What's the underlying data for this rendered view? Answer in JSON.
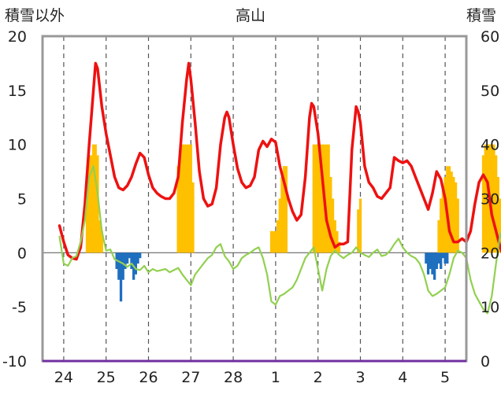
{
  "chart_data": {
    "type": "line",
    "title": "高山",
    "left_axis_label": "積雪以外",
    "right_axis_label": "積雪",
    "y_left": {
      "min": -10,
      "max": 20,
      "ticks": [
        20,
        15,
        10,
        5,
        0,
        -5,
        -10
      ]
    },
    "y_right": {
      "min": 0,
      "max": 60,
      "ticks": [
        60,
        50,
        40,
        30,
        20,
        10,
        0
      ]
    },
    "x_ticks": [
      "24",
      "25",
      "26",
      "27",
      "28",
      "1",
      "2",
      "3",
      "4",
      "5"
    ],
    "colors": {
      "red": "#ee1111",
      "green": "#92d050",
      "orange": "#ffc000",
      "blue": "#1f6fbf",
      "purple": "#7030a0",
      "grid": "#555555",
      "frame": "#999999"
    },
    "series": [
      {
        "color": "red",
        "axis": "left",
        "kind": "line",
        "points": [
          [
            -0.1,
            2.5
          ],
          [
            0.0,
            1.0
          ],
          [
            0.1,
            -0.2
          ],
          [
            0.2,
            -0.5
          ],
          [
            0.3,
            -0.6
          ],
          [
            0.4,
            0.5
          ],
          [
            0.5,
            4.5
          ],
          [
            0.6,
            10.0
          ],
          [
            0.7,
            15.0
          ],
          [
            0.75,
            17.5
          ],
          [
            0.8,
            17.0
          ],
          [
            0.9,
            13.5
          ],
          [
            1.0,
            11.0
          ],
          [
            1.1,
            9.0
          ],
          [
            1.2,
            7.0
          ],
          [
            1.3,
            6.0
          ],
          [
            1.4,
            5.8
          ],
          [
            1.5,
            6.2
          ],
          [
            1.6,
            7.0
          ],
          [
            1.7,
            8.2
          ],
          [
            1.8,
            9.2
          ],
          [
            1.9,
            8.8
          ],
          [
            2.0,
            7.2
          ],
          [
            2.1,
            6.0
          ],
          [
            2.2,
            5.5
          ],
          [
            2.3,
            5.2
          ],
          [
            2.4,
            5.0
          ],
          [
            2.5,
            5.0
          ],
          [
            2.6,
            5.5
          ],
          [
            2.7,
            7.0
          ],
          [
            2.8,
            12.0
          ],
          [
            2.9,
            16.0
          ],
          [
            2.95,
            17.5
          ],
          [
            3.0,
            16.0
          ],
          [
            3.1,
            12.0
          ],
          [
            3.2,
            7.5
          ],
          [
            3.3,
            5.0
          ],
          [
            3.4,
            4.3
          ],
          [
            3.5,
            4.5
          ],
          [
            3.6,
            6.0
          ],
          [
            3.7,
            10.0
          ],
          [
            3.8,
            12.5
          ],
          [
            3.85,
            13.0
          ],
          [
            3.9,
            12.5
          ],
          [
            4.0,
            10.0
          ],
          [
            4.1,
            7.8
          ],
          [
            4.2,
            6.5
          ],
          [
            4.3,
            6.0
          ],
          [
            4.4,
            6.2
          ],
          [
            4.5,
            7.0
          ],
          [
            4.6,
            9.5
          ],
          [
            4.7,
            10.3
          ],
          [
            4.8,
            9.8
          ],
          [
            4.9,
            10.5
          ],
          [
            5.0,
            10.2
          ],
          [
            5.1,
            8.0
          ],
          [
            5.2,
            6.5
          ],
          [
            5.3,
            5.0
          ],
          [
            5.4,
            3.8
          ],
          [
            5.5,
            3.0
          ],
          [
            5.6,
            3.5
          ],
          [
            5.7,
            7.0
          ],
          [
            5.8,
            12.5
          ],
          [
            5.85,
            13.8
          ],
          [
            5.9,
            13.5
          ],
          [
            6.0,
            11.0
          ],
          [
            6.1,
            7.0
          ],
          [
            6.2,
            3.0
          ],
          [
            6.3,
            1.5
          ],
          [
            6.4,
            0.5
          ],
          [
            6.5,
            0.8
          ],
          [
            6.6,
            0.8
          ],
          [
            6.7,
            1.0
          ],
          [
            6.8,
            9.5
          ],
          [
            6.9,
            13.5
          ],
          [
            6.95,
            13.0
          ],
          [
            7.0,
            12.0
          ],
          [
            7.1,
            8.0
          ],
          [
            7.2,
            6.5
          ],
          [
            7.3,
            6.0
          ],
          [
            7.4,
            5.2
          ],
          [
            7.5,
            5.0
          ],
          [
            7.6,
            5.5
          ],
          [
            7.7,
            6.0
          ],
          [
            7.8,
            8.8
          ],
          [
            7.9,
            8.5
          ],
          [
            8.0,
            8.3
          ],
          [
            8.1,
            8.5
          ],
          [
            8.2,
            8.0
          ],
          [
            8.3,
            7.0
          ],
          [
            8.4,
            6.0
          ],
          [
            8.5,
            5.0
          ],
          [
            8.6,
            4.0
          ],
          [
            8.7,
            5.5
          ],
          [
            8.8,
            7.5
          ],
          [
            8.9,
            6.8
          ],
          [
            9.0,
            5.0
          ],
          [
            9.1,
            2.0
          ],
          [
            9.2,
            1.0
          ],
          [
            9.3,
            1.0
          ],
          [
            9.4,
            1.3
          ],
          [
            9.5,
            1.0
          ],
          [
            9.6,
            2.0
          ],
          [
            9.7,
            4.5
          ],
          [
            9.8,
            6.5
          ],
          [
            9.9,
            7.2
          ],
          [
            10.0,
            6.5
          ],
          [
            10.1,
            3.5
          ],
          [
            10.2,
            2.0
          ],
          [
            10.3,
            0.5
          ],
          [
            10.4,
            -0.6
          ]
        ]
      },
      {
        "color": "green",
        "axis": "left",
        "kind": "line",
        "points": [
          [
            -0.1,
            1.5
          ],
          [
            0.0,
            -1.0
          ],
          [
            0.1,
            -1.2
          ],
          [
            0.2,
            -0.5
          ],
          [
            0.3,
            -0.3
          ],
          [
            0.4,
            1.0
          ],
          [
            0.5,
            3.0
          ],
          [
            0.6,
            7.0
          ],
          [
            0.7,
            8.0
          ],
          [
            0.8,
            5.5
          ],
          [
            0.9,
            2.0
          ],
          [
            1.0,
            0.2
          ],
          [
            1.1,
            0.3
          ],
          [
            1.2,
            -0.6
          ],
          [
            1.3,
            -0.8
          ],
          [
            1.4,
            -1.0
          ],
          [
            1.5,
            -1.3
          ],
          [
            1.6,
            -1.0
          ],
          [
            1.7,
            -1.5
          ],
          [
            1.8,
            -1.6
          ],
          [
            1.9,
            -1.2
          ],
          [
            2.0,
            -1.8
          ],
          [
            2.1,
            -1.5
          ],
          [
            2.2,
            -1.7
          ],
          [
            2.3,
            -1.6
          ],
          [
            2.4,
            -1.5
          ],
          [
            2.5,
            -1.8
          ],
          [
            2.6,
            -1.6
          ],
          [
            2.7,
            -1.4
          ],
          [
            2.8,
            -2.0
          ],
          [
            2.9,
            -2.5
          ],
          [
            3.0,
            -3.0
          ],
          [
            3.1,
            -2.0
          ],
          [
            3.2,
            -1.5
          ],
          [
            3.3,
            -1.0
          ],
          [
            3.4,
            -0.5
          ],
          [
            3.5,
            -0.2
          ],
          [
            3.6,
            0.5
          ],
          [
            3.7,
            0.8
          ],
          [
            3.8,
            -0.3
          ],
          [
            3.9,
            -0.8
          ],
          [
            4.0,
            -1.5
          ],
          [
            4.1,
            -1.2
          ],
          [
            4.2,
            -0.5
          ],
          [
            4.3,
            -0.2
          ],
          [
            4.4,
            0.0
          ],
          [
            4.5,
            0.3
          ],
          [
            4.6,
            0.5
          ],
          [
            4.7,
            -0.5
          ],
          [
            4.8,
            -2.0
          ],
          [
            4.9,
            -4.5
          ],
          [
            5.0,
            -4.8
          ],
          [
            5.1,
            -4.0
          ],
          [
            5.2,
            -3.8
          ],
          [
            5.3,
            -3.5
          ],
          [
            5.4,
            -3.2
          ],
          [
            5.5,
            -2.5
          ],
          [
            5.6,
            -1.5
          ],
          [
            5.7,
            -0.5
          ],
          [
            5.8,
            0.0
          ],
          [
            5.9,
            0.5
          ],
          [
            6.0,
            -1.5
          ],
          [
            6.1,
            -3.5
          ],
          [
            6.2,
            -1.5
          ],
          [
            6.3,
            -0.3
          ],
          [
            6.4,
            0.2
          ],
          [
            6.5,
            -0.2
          ],
          [
            6.6,
            -0.5
          ],
          [
            6.7,
            -0.2
          ],
          [
            6.8,
            0.0
          ],
          [
            6.9,
            0.5
          ],
          [
            7.0,
            0.0
          ],
          [
            7.1,
            -0.2
          ],
          [
            7.2,
            -0.4
          ],
          [
            7.3,
            0.0
          ],
          [
            7.4,
            0.3
          ],
          [
            7.5,
            -0.3
          ],
          [
            7.6,
            -0.2
          ],
          [
            7.7,
            0.2
          ],
          [
            7.8,
            0.8
          ],
          [
            7.9,
            1.3
          ],
          [
            8.0,
            0.5
          ],
          [
            8.1,
            0.0
          ],
          [
            8.2,
            -0.3
          ],
          [
            8.3,
            -0.5
          ],
          [
            8.4,
            -1.0
          ],
          [
            8.5,
            -2.0
          ],
          [
            8.6,
            -3.5
          ],
          [
            8.7,
            -4.0
          ],
          [
            8.8,
            -3.8
          ],
          [
            8.9,
            -3.5
          ],
          [
            9.0,
            -3.2
          ],
          [
            9.1,
            -2.0
          ],
          [
            9.2,
            -0.5
          ],
          [
            9.3,
            0.2
          ],
          [
            9.4,
            0.0
          ],
          [
            9.5,
            -0.5
          ],
          [
            9.6,
            -2.5
          ],
          [
            9.7,
            -3.8
          ],
          [
            9.8,
            -4.5
          ],
          [
            9.9,
            -5.2
          ],
          [
            10.0,
            -5.6
          ],
          [
            10.1,
            -4.0
          ],
          [
            10.2,
            -1.0
          ],
          [
            10.3,
            1.8
          ],
          [
            10.4,
            0.5
          ],
          [
            10.45,
            -1.5
          ]
        ]
      },
      {
        "color": "orange",
        "axis": "right",
        "kind": "bar",
        "points": [
          [
            0.55,
            34
          ],
          [
            0.6,
            38
          ],
          [
            0.65,
            38
          ],
          [
            0.7,
            40
          ],
          [
            0.75,
            40
          ],
          [
            0.8,
            38
          ],
          [
            0.85,
            26
          ],
          [
            0.9,
            24
          ],
          [
            2.7,
            36
          ],
          [
            2.75,
            39
          ],
          [
            2.8,
            40
          ],
          [
            2.85,
            40
          ],
          [
            2.9,
            40
          ],
          [
            2.95,
            40
          ],
          [
            3.0,
            40
          ],
          [
            3.05,
            33
          ],
          [
            4.9,
            24
          ],
          [
            4.95,
            24
          ],
          [
            5.0,
            24
          ],
          [
            5.05,
            26
          ],
          [
            5.1,
            30
          ],
          [
            5.15,
            34
          ],
          [
            5.2,
            36
          ],
          [
            5.25,
            36
          ],
          [
            5.9,
            40
          ],
          [
            5.95,
            40
          ],
          [
            6.0,
            40
          ],
          [
            6.05,
            40
          ],
          [
            6.1,
            40
          ],
          [
            6.15,
            40
          ],
          [
            6.2,
            40
          ],
          [
            6.25,
            40
          ],
          [
            6.3,
            34
          ],
          [
            6.35,
            30
          ],
          [
            6.4,
            26
          ],
          [
            6.45,
            24
          ],
          [
            6.5,
            22
          ],
          [
            6.95,
            28
          ],
          [
            7.0,
            30
          ],
          [
            8.85,
            26
          ],
          [
            8.9,
            30
          ],
          [
            8.95,
            32
          ],
          [
            9.0,
            34
          ],
          [
            9.05,
            36
          ],
          [
            9.1,
            36
          ],
          [
            9.15,
            35
          ],
          [
            9.2,
            34
          ],
          [
            9.25,
            33
          ],
          [
            9.3,
            30
          ],
          [
            9.9,
            38
          ],
          [
            9.95,
            40
          ],
          [
            10.0,
            40
          ],
          [
            10.05,
            40
          ],
          [
            10.1,
            40
          ],
          [
            10.15,
            40
          ],
          [
            10.2,
            38
          ],
          [
            10.25,
            34
          ],
          [
            10.3,
            30
          ]
        ]
      },
      {
        "color": "blue",
        "axis": "right",
        "kind": "bar",
        "points": [
          [
            1.25,
            17
          ],
          [
            1.3,
            15
          ],
          [
            1.35,
            11
          ],
          [
            1.4,
            15
          ],
          [
            1.45,
            17
          ],
          [
            1.5,
            18
          ],
          [
            1.55,
            19
          ],
          [
            1.6,
            17
          ],
          [
            1.65,
            15
          ],
          [
            1.7,
            16
          ],
          [
            1.75,
            18
          ],
          [
            1.8,
            19
          ],
          [
            8.55,
            18
          ],
          [
            8.6,
            16
          ],
          [
            8.65,
            17
          ],
          [
            8.7,
            16
          ],
          [
            8.75,
            15
          ],
          [
            8.8,
            17
          ],
          [
            8.85,
            18
          ],
          [
            8.9,
            17
          ],
          [
            8.95,
            19
          ],
          [
            9.0,
            18
          ],
          [
            9.05,
            18
          ]
        ]
      },
      {
        "color": "purple",
        "axis": "left",
        "kind": "line",
        "points": [
          [
            -0.5,
            -10.0
          ],
          [
            10.5,
            -10.0
          ]
        ]
      }
    ]
  }
}
